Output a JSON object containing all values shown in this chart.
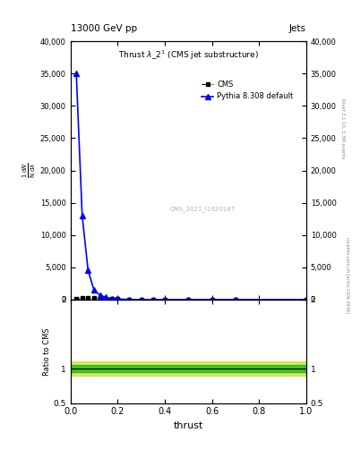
{
  "title_top": "13000 GeV pp",
  "title_top_right": "Jets",
  "plot_title": "Thrust $\\lambda\\_2^1$ (CMS jet substructure)",
  "watermark": "CMS_2021_I1920187",
  "right_label_top": "Rivet 3.1.10, 3.3M events",
  "right_label_bottom": "mcplots.cern.ch [arXiv:1306.3436]",
  "xlabel": "thrust",
  "ylabel_ratio": "Ratio to CMS",
  "cms_x": [
    0.025,
    0.05,
    0.075,
    0.1,
    0.125,
    0.15,
    0.175,
    0.2,
    0.25,
    0.3,
    0.35,
    0.4,
    0.5,
    0.6,
    0.7,
    1.0
  ],
  "cms_y": [
    100,
    210,
    240,
    220,
    190,
    150,
    120,
    95,
    60,
    35,
    20,
    12,
    4,
    0.8,
    0.15,
    0.05
  ],
  "pythia_x": [
    0.025,
    0.05,
    0.075,
    0.1,
    0.125,
    0.15,
    0.175,
    0.2,
    0.25,
    0.3,
    0.35,
    0.4,
    0.5,
    0.6,
    0.7,
    1.0
  ],
  "pythia_y": [
    35000,
    13000,
    4500,
    1500,
    700,
    350,
    180,
    90,
    28,
    12,
    6,
    3,
    0.8,
    0.2,
    0.06,
    0.01
  ],
  "ylim_main": [
    0,
    40000
  ],
  "yticks_main": [
    0,
    5000,
    10000,
    15000,
    20000,
    25000,
    30000,
    35000,
    40000
  ],
  "xlim": [
    0,
    1
  ],
  "ylim_ratio": [
    0.5,
    2.0
  ],
  "yticks_ratio": [
    0.5,
    1.0,
    2.0
  ],
  "cms_color": "#000000",
  "pythia_color": "#0000ff",
  "ratio_line_color": "#000000",
  "cms_marker": "s",
  "pythia_marker": "^"
}
